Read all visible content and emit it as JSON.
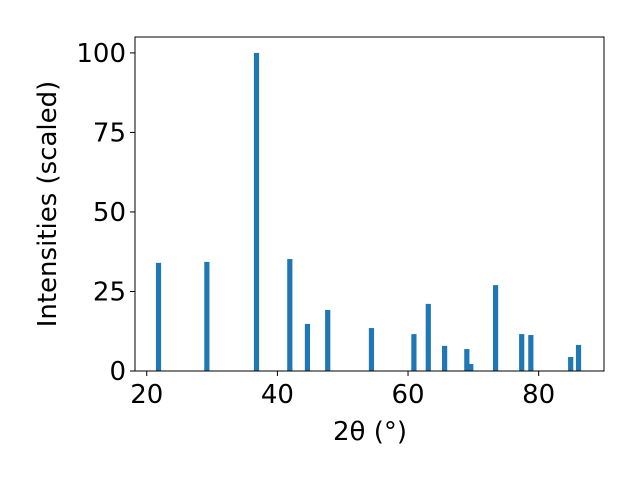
{
  "chart_data": {
    "type": "bar",
    "x_label": "2θ (°)",
    "y_label": "Intensities (scaled)",
    "x": [
      21.8,
      29.2,
      36.8,
      41.9,
      44.6,
      47.7,
      54.4,
      60.9,
      63.1,
      65.6,
      69.0,
      69.6,
      73.4,
      77.4,
      78.8,
      84.9,
      86.1
    ],
    "values": [
      34.0,
      34.3,
      100,
      35.2,
      14.8,
      19.2,
      13.5,
      11.6,
      21.1,
      7.9,
      6.9,
      2.2,
      27.0,
      11.6,
      11.3,
      4.4,
      8.2
    ],
    "color": "#1f77b4",
    "xlim": [
      18.2,
      90
    ],
    "xticks": [
      20,
      40,
      60,
      80
    ],
    "ylim": [
      0,
      105
    ],
    "yticks": [
      0,
      25,
      50,
      75,
      100
    ],
    "grid": false
  }
}
